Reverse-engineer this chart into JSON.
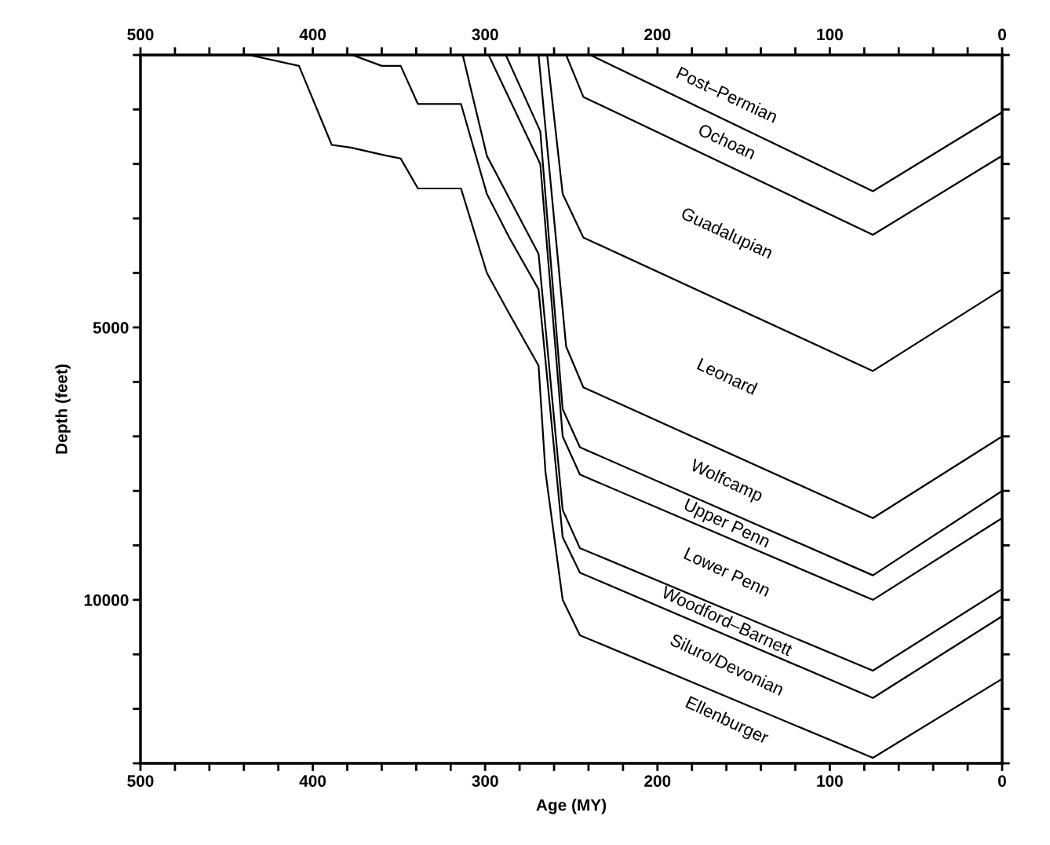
{
  "chart_data": {
    "type": "line",
    "xlabel": "Age (MY)",
    "ylabel": "Depth (feet)",
    "xlim": [
      500,
      0
    ],
    "ylim": [
      13000,
      0
    ],
    "xticks": [
      500,
      {
        "value": 480,
        "label": null
      },
      {
        "value": 460,
        "label": null
      },
      {
        "value": 440,
        "label": null
      },
      {
        "value": 420,
        "label": null
      },
      400,
      {
        "value": 380,
        "label": null
      },
      {
        "value": 360,
        "label": null
      },
      {
        "value": 340,
        "label": null
      },
      {
        "value": 320,
        "label": null
      },
      300,
      {
        "value": 280,
        "label": null
      },
      {
        "value": 260,
        "label": null
      },
      {
        "value": 240,
        "label": null
      },
      {
        "value": 220,
        "label": null
      },
      200,
      {
        "value": 180,
        "label": null
      },
      {
        "value": 160,
        "label": null
      },
      {
        "value": 140,
        "label": null
      },
      {
        "value": 120,
        "label": null
      },
      100,
      {
        "value": 80,
        "label": null
      },
      {
        "value": 60,
        "label": null
      },
      {
        "value": 40,
        "label": null
      },
      {
        "value": 20,
        "label": null
      },
      0
    ],
    "x2lim": [
      500,
      0
    ],
    "x2ticks": [
      500,
      {
        "value": 480,
        "label": null
      },
      {
        "value": 460,
        "label": null
      },
      {
        "value": 440,
        "label": null
      },
      {
        "value": 420,
        "label": null
      },
      400,
      {
        "value": 380,
        "label": null
      },
      {
        "value": 360,
        "label": null
      },
      {
        "value": 340,
        "label": null
      },
      {
        "value": 320,
        "label": null
      },
      300,
      {
        "value": 280,
        "label": null
      },
      {
        "value": 260,
        "label": null
      },
      {
        "value": 240,
        "label": null
      },
      {
        "value": 220,
        "label": null
      },
      200,
      {
        "value": 180,
        "label": null
      },
      {
        "value": 160,
        "label": null
      },
      {
        "value": 140,
        "label": null
      },
      {
        "value": 120,
        "label": null
      },
      100,
      {
        "value": 80,
        "label": null
      },
      {
        "value": 60,
        "label": null
      },
      {
        "value": 40,
        "label": null
      },
      {
        "value": 20,
        "label": null
      },
      0
    ],
    "yticks": [
      {
        "value": 0,
        "label": null
      },
      {
        "value": 1000,
        "label": null
      },
      {
        "value": 2000,
        "label": null
      },
      {
        "value": 3000,
        "label": null
      },
      {
        "value": 4000,
        "label": null
      },
      5000,
      {
        "value": 6000,
        "label": null
      },
      {
        "value": 7000,
        "label": null
      },
      {
        "value": 8000,
        "label": null
      },
      {
        "value": 9000,
        "label": null
      },
      10000,
      {
        "value": 11000,
        "label": null
      },
      {
        "value": 12000,
        "label": null
      },
      {
        "value": 13000,
        "label": null
      }
    ],
    "line_style": "solid",
    "series": [
      {
        "color": "#000000",
        "x": [
          239,
          75,
          0
        ],
        "values": [
          0,
          2500,
          1050
        ]
      },
      {
        "color": "#000000",
        "x": [
          253,
          243,
          75,
          0
        ],
        "values": [
          0,
          770,
          3300,
          1850
        ]
      },
      {
        "color": "#000000",
        "x": [
          264,
          255,
          243,
          75,
          0
        ],
        "values": [
          0,
          2550,
          3350,
          5800,
          4300
        ]
      },
      {
        "color": "#000000",
        "x": [
          269,
          253,
          243,
          75,
          0
        ],
        "values": [
          0,
          5350,
          6100,
          8500,
          7000
        ]
      },
      {
        "color": "#000000",
        "x": [
          288,
          268,
          255,
          245,
          75,
          0
        ],
        "values": [
          0,
          1400,
          6500,
          7200,
          9550,
          8000
        ]
      },
      {
        "color": "#000000",
        "x": [
          298,
          268,
          255,
          245,
          75,
          0
        ],
        "values": [
          0,
          2000,
          7000,
          7700,
          10000,
          8500
        ]
      },
      {
        "color": "#000000",
        "x": [
          313,
          299,
          269,
          255,
          245,
          75,
          0
        ],
        "values": [
          0,
          1850,
          3650,
          8350,
          9050,
          11300,
          9800
        ]
      },
      {
        "color": "#000000",
        "x": [
          377,
          360,
          349,
          339,
          314,
          299,
          286,
          269,
          255,
          245,
          75,
          0
        ],
        "values": [
          0,
          200,
          200,
          900,
          900,
          2550,
          3350,
          4300,
          8850,
          9500,
          11800,
          10300
        ]
      },
      {
        "color": "#000000",
        "x": [
          437,
          408,
          389,
          378,
          357,
          349,
          339,
          314,
          299,
          286,
          269,
          265,
          255,
          245,
          75,
          0
        ],
        "values": [
          0,
          200,
          1650,
          1700,
          1850,
          1900,
          2450,
          2450,
          4000,
          4750,
          5700,
          7650,
          10000,
          10650,
          12900,
          11450
        ]
      }
    ],
    "annotations": [
      "Post–Permian",
      "Ochoan",
      "Guadalupian",
      "Leonard",
      "Wolfcamp",
      "Upper Penn",
      "Lower Penn",
      "Woodford–Barnett",
      "Siluro/Devonian",
      "Ellenburger"
    ]
  }
}
